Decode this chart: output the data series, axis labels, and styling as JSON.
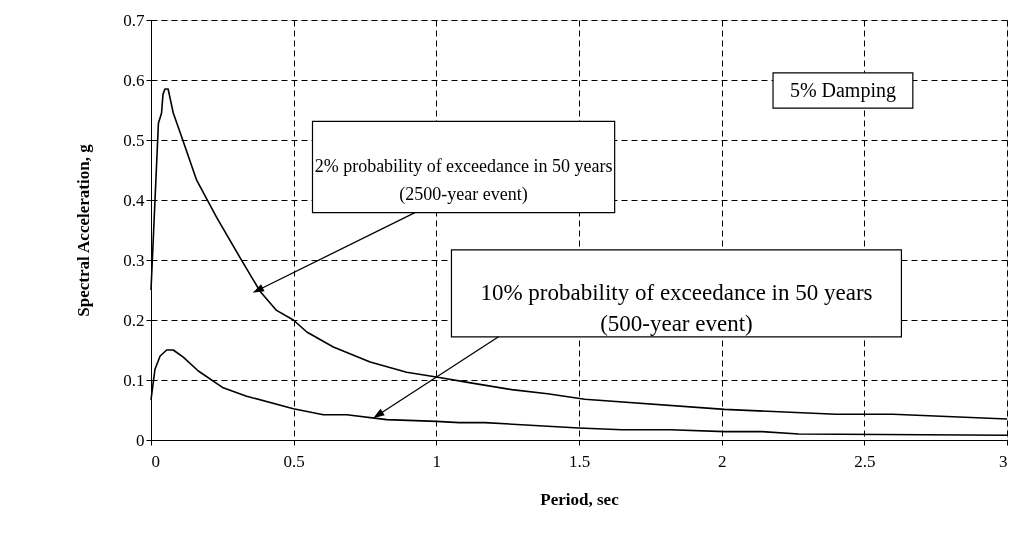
{
  "chart_data": {
    "type": "line",
    "xlabel": "Period, sec",
    "ylabel": "Spectral Acceleration, g",
    "x": [
      0,
      0.026,
      0.037,
      0.042,
      0.049,
      0.06,
      0.078,
      0.107,
      0.16,
      0.23,
      0.312,
      0.382,
      0.44,
      0.499,
      0.546,
      0.639,
      0.768,
      0.896,
      1.0,
      1.11,
      1.264,
      1.39,
      1.52,
      2.01,
      2.4,
      2.6,
      3.0
    ],
    "series": [
      {
        "color": "#000000",
        "values": [
          0.25,
          0.528,
          0.545,
          0.576,
          0.585,
          0.585,
          0.545,
          0.506,
          0.433,
          0.371,
          0.304,
          0.248,
          0.216,
          0.2,
          0.18,
          0.155,
          0.13,
          0.113,
          0.105,
          0.096,
          0.084,
          0.077,
          0.068,
          0.051,
          0.043,
          0.043,
          0.035
        ]
      },
      {
        "color": "#000000",
        "x": [
          0,
          0.014,
          0.032,
          0.055,
          0.078,
          0.113,
          0.166,
          0.253,
          0.335,
          0.499,
          0.604,
          0.686,
          0.826,
          1.0,
          1.08,
          1.17,
          1.5,
          1.65,
          1.82,
          2.01,
          2.14,
          2.27,
          3.0
        ],
        "values": [
          0.067,
          0.118,
          0.14,
          0.15,
          0.15,
          0.138,
          0.115,
          0.087,
          0.073,
          0.052,
          0.042,
          0.042,
          0.034,
          0.031,
          0.029,
          0.029,
          0.02,
          0.017,
          0.017,
          0.014,
          0.014,
          0.01,
          0.008
        ]
      }
    ],
    "xlim": [
      0,
      3
    ],
    "xticks": [
      0,
      0.5,
      1,
      1.5,
      2,
      2.5,
      3
    ],
    "ylim": [
      0,
      0.7
    ],
    "yticks": [
      0,
      0.1,
      0.2,
      0.3,
      0.4,
      0.5,
      0.6,
      0.7
    ],
    "grid": true,
    "line_style": "solid",
    "marker": "none",
    "annotations": [
      {
        "text": "2% probability of exceedance in 50 years\n(2500-year event)",
        "x": 0.376,
        "y": 0.25
      },
      {
        "text": "10% probability of exceedance in 50 years\n(500-year event)",
        "x": 0.797,
        "y": 0.042
      },
      "5% Damping"
    ]
  }
}
